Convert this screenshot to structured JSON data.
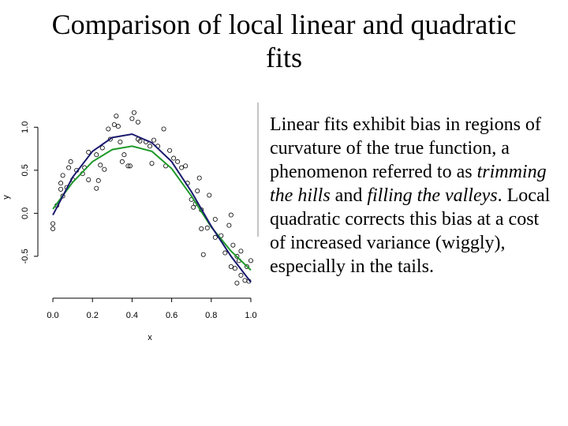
{
  "slide": {
    "title": "Comparison of local linear and quadratic fits",
    "body": [
      {
        "text": "Linear fits exhibit bias in regions of curvature of the true function, a phenomenon referred to as "
      },
      {
        "text": "trimming the hills",
        "italic": true
      },
      {
        "text": " and "
      },
      {
        "text": "filling the valleys",
        "italic": true
      },
      {
        "text": ".  Local quadratic corrects this bias at a cost of increased variance (wiggly), especially in the tails."
      }
    ]
  },
  "chart_data": {
    "type": "scatter",
    "xlabel": "x",
    "ylabel": "y",
    "xlim": [
      -0.04,
      1.04
    ],
    "ylim": [
      -0.95,
      1.25
    ],
    "xticks": [
      {
        "value": 0,
        "label": "0.0"
      },
      0.2,
      0.4,
      0.6,
      0.8,
      {
        "value": 1,
        "label": "1.0"
      }
    ],
    "yticks": [
      -0.5,
      {
        "value": 0,
        "label": "0.0"
      },
      0.5,
      {
        "value": 1,
        "label": "1.0"
      }
    ],
    "series": [
      {
        "type": "scatter",
        "color": "#000000",
        "x": [
          0.0,
          0.0,
          0.02,
          0.04,
          0.04,
          0.05,
          0.05,
          0.07,
          0.08,
          0.09,
          0.1,
          0.12,
          0.15,
          0.16,
          0.18,
          0.18,
          0.22,
          0.23,
          0.22,
          0.24,
          0.25,
          0.26,
          0.28,
          0.29,
          0.31,
          0.32,
          0.33,
          0.34,
          0.35,
          0.36,
          0.38,
          0.39,
          0.4,
          0.41,
          0.43,
          0.43,
          0.44,
          0.47,
          0.49,
          0.5,
          0.51,
          0.53,
          0.56,
          0.57,
          0.59,
          0.61,
          0.63,
          0.65,
          0.67,
          0.68,
          0.7,
          0.71,
          0.72,
          0.74,
          0.75,
          0.73,
          0.75,
          0.76,
          0.78,
          0.79,
          0.82,
          0.82,
          0.85,
          0.89,
          0.9,
          0.91,
          0.9,
          0.92,
          0.93,
          0.94,
          0.95,
          0.97,
          0.98,
          0.99,
          1.0,
          0.87,
          0.93,
          0.95
        ],
        "values": [
          -0.12,
          -0.18,
          0.09,
          0.35,
          0.28,
          0.2,
          0.44,
          0.3,
          0.53,
          0.6,
          0.39,
          0.5,
          0.46,
          0.53,
          0.39,
          0.71,
          0.29,
          0.38,
          0.68,
          0.56,
          0.76,
          0.51,
          0.98,
          0.86,
          1.03,
          1.13,
          1.01,
          0.83,
          0.6,
          0.68,
          0.55,
          0.55,
          1.1,
          1.17,
          1.06,
          0.86,
          0.84,
          0.83,
          0.78,
          0.58,
          0.85,
          0.78,
          0.98,
          0.55,
          0.73,
          0.64,
          0.6,
          0.53,
          0.55,
          0.35,
          0.16,
          0.07,
          0.11,
          0.41,
          0.04,
          0.26,
          -0.18,
          -0.48,
          -0.17,
          0.21,
          -0.07,
          -0.28,
          -0.26,
          -0.14,
          -0.02,
          -0.37,
          -0.62,
          -0.64,
          -0.5,
          -0.55,
          -0.72,
          -0.78,
          -0.62,
          -0.79,
          -0.55,
          -0.46,
          -0.81,
          -0.44
        ]
      },
      {
        "type": "line",
        "color": "#1f9a2a",
        "x": [
          0,
          0.1,
          0.2,
          0.3,
          0.4,
          0.5,
          0.6,
          0.7,
          0.8,
          0.9,
          1
        ],
        "values": [
          0.05,
          0.36,
          0.6,
          0.74,
          0.78,
          0.72,
          0.52,
          0.2,
          -0.16,
          -0.44,
          -0.66
        ]
      },
      {
        "type": "line",
        "color": "#1a1a6e",
        "x": [
          0,
          0.1,
          0.2,
          0.3,
          0.4,
          0.5,
          0.6,
          0.7,
          0.8,
          0.9,
          1
        ],
        "values": [
          -0.02,
          0.42,
          0.72,
          0.88,
          0.92,
          0.82,
          0.6,
          0.25,
          -0.15,
          -0.5,
          -0.8
        ]
      }
    ]
  }
}
